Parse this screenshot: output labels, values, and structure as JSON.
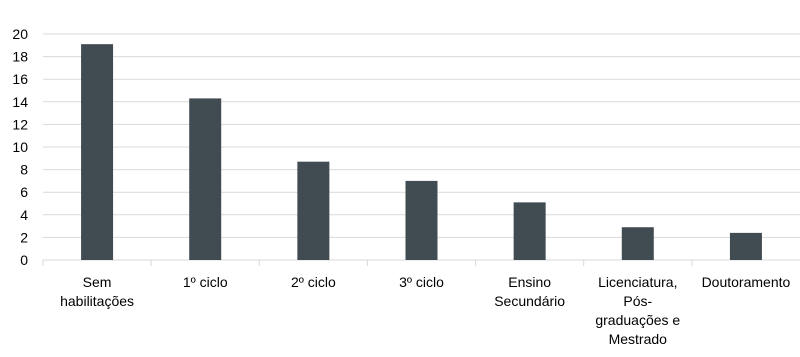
{
  "chart_data": {
    "type": "bar",
    "title": "",
    "xlabel": "",
    "ylabel": "",
    "ylim": [
      0,
      20
    ],
    "yticks": [
      0,
      2,
      4,
      6,
      8,
      10,
      12,
      14,
      16,
      18,
      20
    ],
    "grid": true,
    "legend": "none",
    "categories": [
      [
        "Sem",
        "habilitações"
      ],
      [
        "1º ciclo"
      ],
      [
        "2º ciclo"
      ],
      [
        "3º ciclo"
      ],
      [
        "Ensino",
        "Secundário"
      ],
      [
        "Licenciatura,",
        "Pós-",
        "graduações e",
        "Mestrado"
      ],
      [
        "Doutoramento"
      ]
    ],
    "values": [
      19.1,
      14.3,
      8.7,
      7.0,
      5.1,
      2.9,
      2.4
    ],
    "colors": {
      "bar": "#414b52",
      "grid": "#d9d9d9",
      "axis": "#d9d9d9",
      "text": "#000000"
    }
  }
}
